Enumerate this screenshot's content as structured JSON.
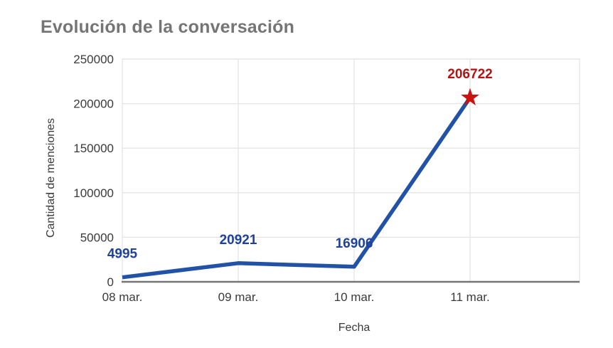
{
  "chart_data": {
    "type": "line",
    "title": "Evolución de la conversación",
    "xlabel": "Fecha",
    "ylabel": "Cantidad de menciones",
    "categories": [
      "08 mar.",
      "09 mar.",
      "10 mar.",
      "11 mar."
    ],
    "values": [
      4995,
      20921,
      16906,
      206722
    ],
    "data_labels": [
      "4995",
      "20921",
      "16906",
      "206722"
    ],
    "ylim": [
      0,
      250000
    ],
    "y_ticks": [
      0,
      50000,
      100000,
      150000,
      200000,
      250000
    ],
    "y_tick_labels": [
      "0",
      "50000",
      "100000",
      "150000",
      "200000",
      "250000"
    ],
    "grid": true,
    "legend_position": "none",
    "series_name": "Cantidad de menciones",
    "series_color": "#2152a5",
    "data_label_color": "#1e419b",
    "highlight_index": 3,
    "highlight_label_color": "#b51212",
    "marker": {
      "type": "star",
      "index": 3,
      "color": "#cc1111"
    },
    "title_color": "#757575",
    "axis_text_color": "#3a3a3a",
    "grid_color": "#e4e4e4",
    "axis_line_color": "#757575"
  }
}
